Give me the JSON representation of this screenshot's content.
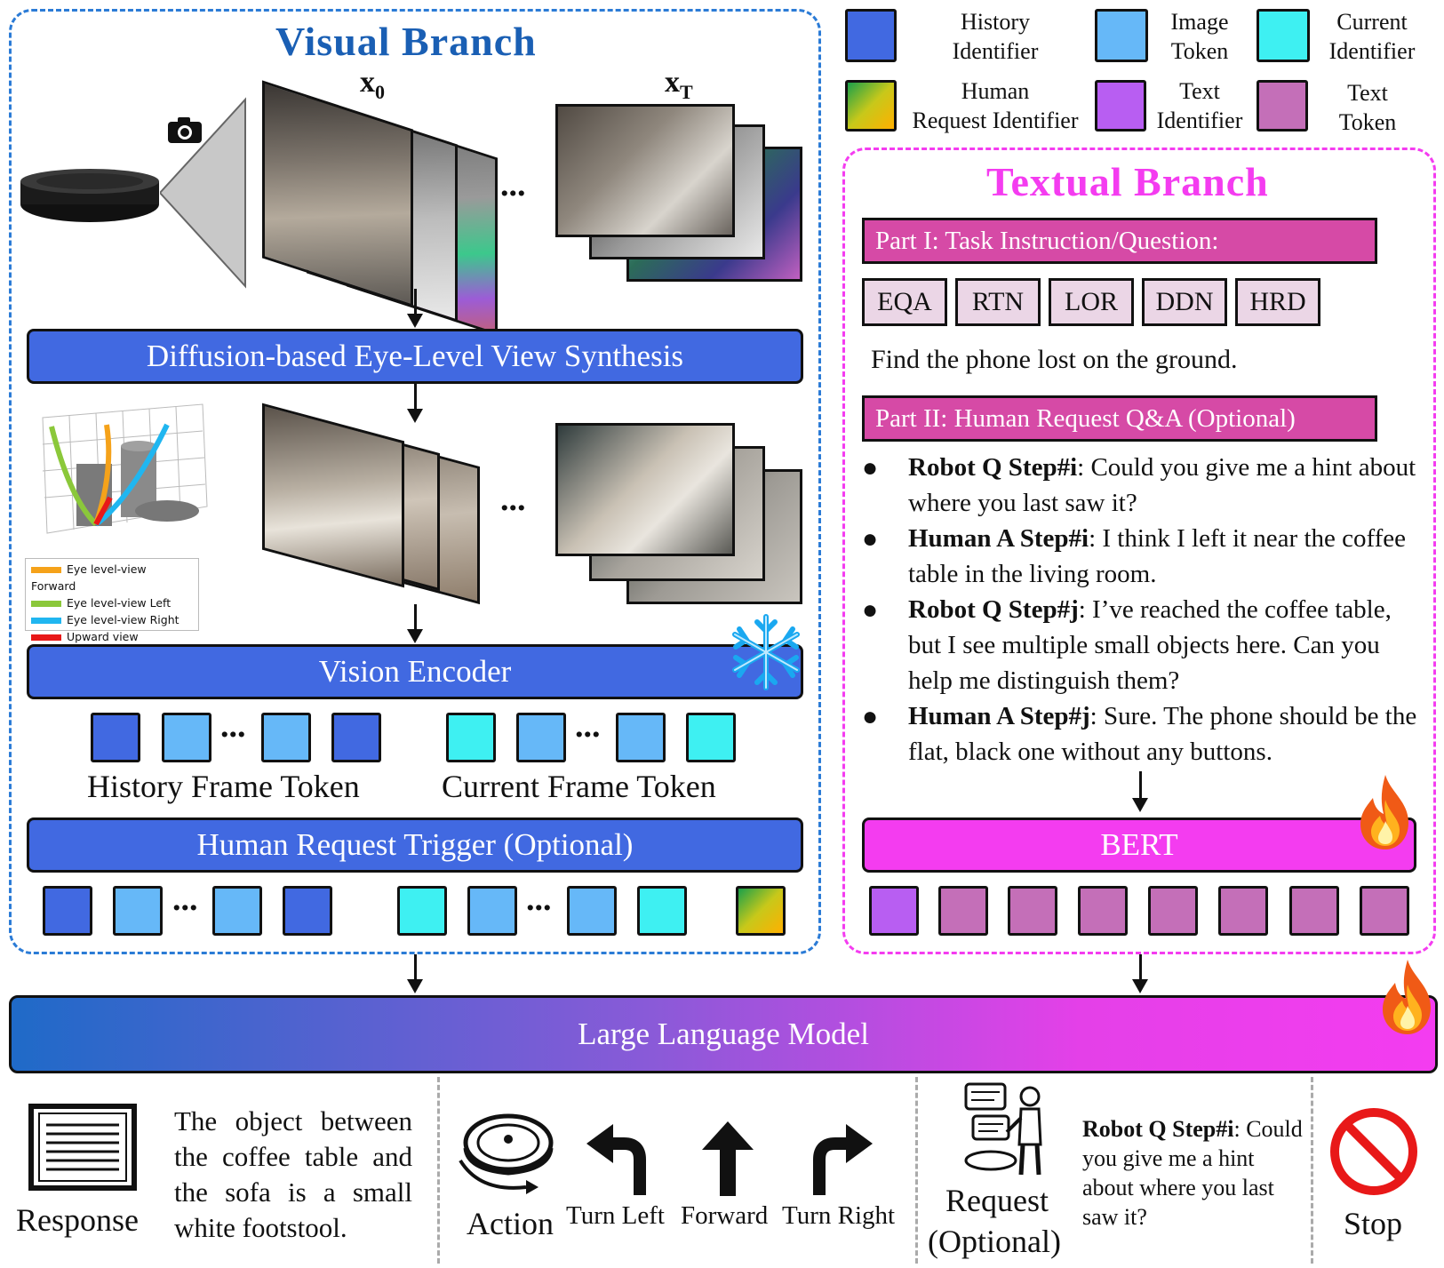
{
  "legend": {
    "history_identifier": "History\nIdentifier",
    "image_token": "Image\nToken",
    "current_identifier": "Current\nIdentifier",
    "human_request_identifier": "Human\nRequest Identifier",
    "text_identifier": "Text\nIdentifier",
    "text_token": "Text\nToken"
  },
  "visual_branch": {
    "title": "Visual Branch",
    "x0_label": "x",
    "x0_sub": "0",
    "xt_label": "x",
    "xt_sub": "T",
    "ellipsis": "...",
    "diffusion_label": "Diffusion-based Eye-Level View Synthesis",
    "plot_legend": [
      "Eye level-view Forward",
      "Eye level-view Left",
      "Eye level-view Right",
      "Upward view"
    ],
    "vision_encoder_label": "Vision Encoder",
    "history_frame_token": "History Frame Token",
    "current_frame_token": "Current Frame Token",
    "human_request_trigger": "Human Request Trigger (Optional)"
  },
  "textual_branch": {
    "title": "Textual Branch",
    "part1": "Part I: Task Instruction/Question:",
    "tasks": [
      "EQA",
      "RTN",
      "LOR",
      "DDN",
      "HRD"
    ],
    "instruction": "Find the phone lost on the ground.",
    "part2": "Part II: Human Request Q&A (Optional)",
    "qa": [
      {
        "speaker": "Robot Q Step#i",
        "text": ": Could you give me a hint about where you last saw it?"
      },
      {
        "speaker": "Human A Step#i",
        "text": ": I think I left it near the coffee table in the living room."
      },
      {
        "speaker": "Robot Q Step#j",
        "text": ": I’ve reached the coffee table, but I see multiple small objects here. Can you help me distinguish them?"
      },
      {
        "speaker": "Human A Step#j",
        "text": ": Sure. The phone should be the flat, black one without any buttons."
      }
    ],
    "bert_label": "BERT"
  },
  "llm_label": "Large Language Model",
  "outputs": {
    "response_label": "Response",
    "response_text": "The object between the coffee table and the sofa is a small white footstool.",
    "action_label": "Action",
    "turn_left": "Turn Left",
    "forward": "Forward",
    "turn_right": "Turn Right",
    "request_label": "Request",
    "request_optional": "(Optional)",
    "request_speaker": "Robot Q Step#i",
    "request_text": ": Could you give me a hint about where you last saw it?",
    "stop_label": "Stop"
  },
  "colors": {
    "visual_border": "#2b7bd6",
    "textual_border": "#f43cf0",
    "blue_bar": "#4169e1",
    "magenta_bar": "#f43cf0",
    "visual_title": "#1a5fb4",
    "textual_title": "#f43cf0"
  }
}
